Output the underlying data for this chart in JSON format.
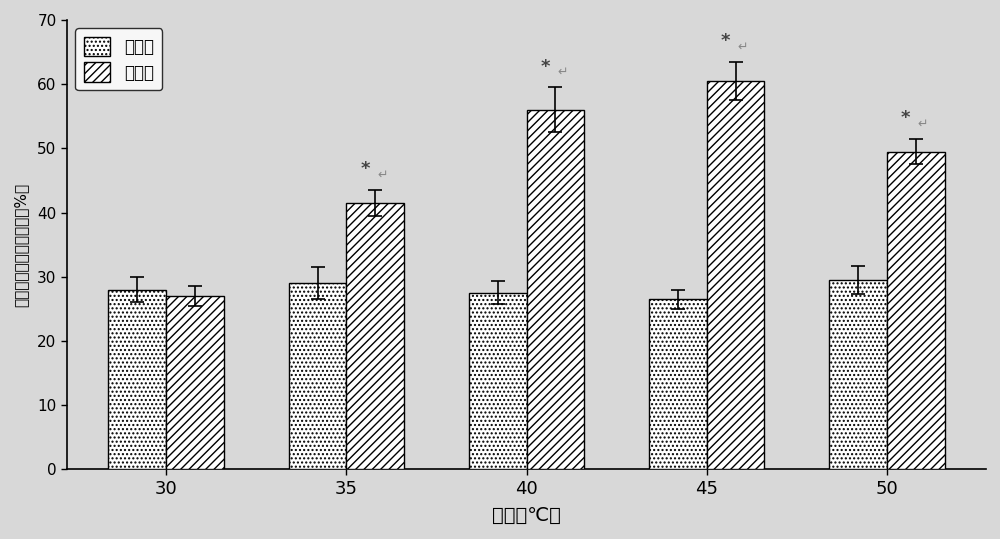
{
  "temperatures": [
    30,
    35,
    40,
    45,
    50
  ],
  "control_values": [
    28.0,
    29.0,
    27.5,
    26.5,
    29.5
  ],
  "control_errors": [
    2.0,
    2.5,
    1.8,
    1.5,
    2.2
  ],
  "treatment_values": [
    27.0,
    41.5,
    56.0,
    60.5,
    49.5
  ],
  "treatment_errors": [
    1.5,
    2.0,
    3.5,
    3.0,
    2.0
  ],
  "ylabel": "菌膜变化效率／存活率（%）",
  "xlabel": "温度（℃）",
  "legend_control": "对照组",
  "legend_treatment": "处理组",
  "ylim": [
    0,
    70
  ],
  "yticks": [
    0,
    10,
    20,
    30,
    40,
    50,
    60,
    70
  ],
  "bar_width": 0.32,
  "significance_temps": [
    35,
    40,
    45,
    50
  ],
  "bg_color": "#d8d8d8",
  "fig_width": 10.0,
  "fig_height": 5.39
}
